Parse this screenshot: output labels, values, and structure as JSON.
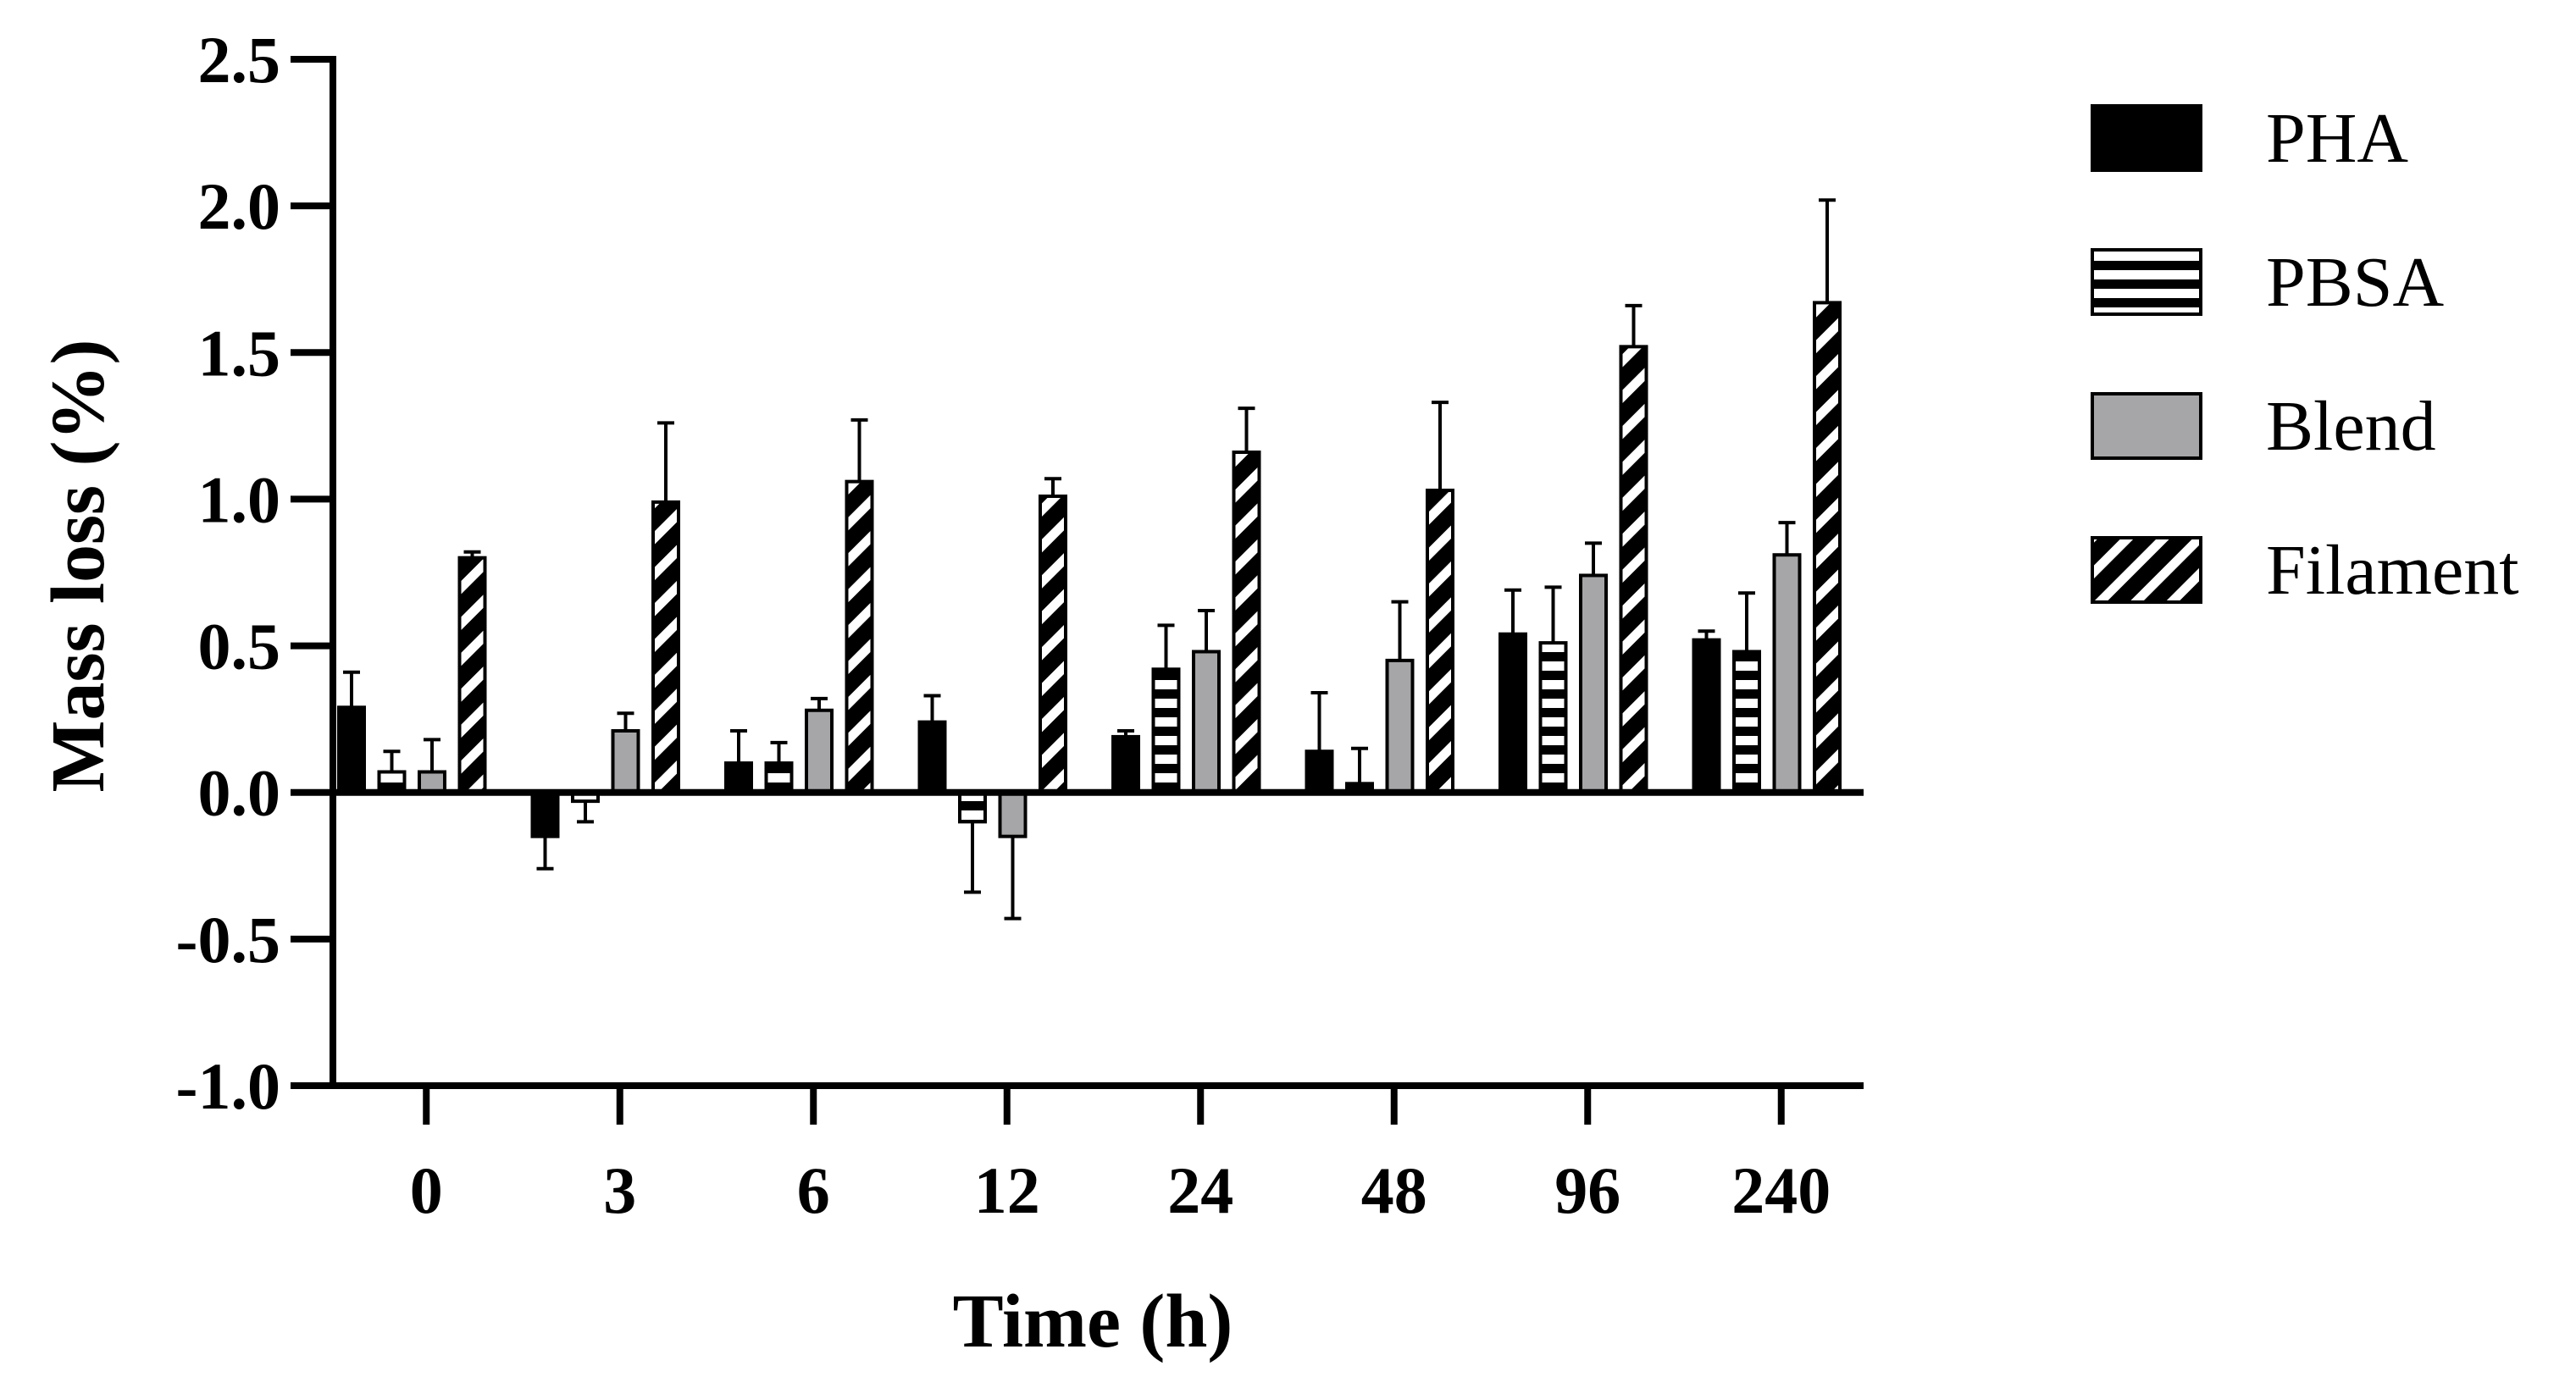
{
  "chart_data": {
    "type": "bar",
    "title": "",
    "xlabel": "Time (h)",
    "ylabel": "Mass loss (%)",
    "ylim": [
      -1.0,
      2.5
    ],
    "yticks": [
      "-1.0",
      "-0.5",
      "0.0",
      "0.5",
      "1.0",
      "1.5",
      "2.0",
      "2.5"
    ],
    "categories": [
      "0",
      "3",
      "6",
      "12",
      "24",
      "48",
      "96",
      "240"
    ],
    "grid": false,
    "legend_position": "right",
    "error_bars": "one-sided (SD)",
    "series": [
      {
        "name": "PHA",
        "pattern": "solid-black",
        "values": [
          0.29,
          -0.15,
          0.1,
          0.24,
          0.19,
          0.14,
          0.54,
          0.52
        ],
        "errors": [
          0.12,
          0.11,
          0.11,
          0.09,
          0.02,
          0.2,
          0.15,
          0.03
        ]
      },
      {
        "name": "PBSA",
        "pattern": "horizontal-stripes",
        "values": [
          0.07,
          -0.03,
          0.1,
          -0.1,
          0.42,
          0.03,
          0.51,
          0.48
        ],
        "errors": [
          0.07,
          0.07,
          0.07,
          0.24,
          0.15,
          0.12,
          0.19,
          0.2
        ]
      },
      {
        "name": "Blend",
        "pattern": "solid-gray",
        "values": [
          0.07,
          0.21,
          0.28,
          -0.15,
          0.48,
          0.45,
          0.74,
          0.81
        ],
        "errors": [
          0.11,
          0.06,
          0.04,
          0.28,
          0.14,
          0.2,
          0.11,
          0.11
        ]
      },
      {
        "name": "Filament",
        "pattern": "diagonal-stripes",
        "values": [
          0.8,
          0.99,
          1.06,
          1.01,
          1.16,
          1.03,
          1.52,
          1.67
        ],
        "errors": [
          0.02,
          0.27,
          0.21,
          0.06,
          0.15,
          0.3,
          0.14,
          0.35
        ]
      }
    ],
    "colors": {
      "black": "#000000",
      "gray": "#a6a6a8",
      "white": "#ffffff"
    }
  }
}
